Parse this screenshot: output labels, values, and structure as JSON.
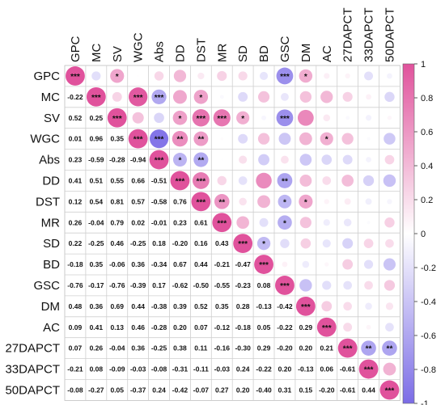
{
  "chart_data": {
    "type": "heatmap",
    "variables": [
      "GPC",
      "MC",
      "SV",
      "WGC",
      "Abs",
      "DD",
      "DST",
      "MR",
      "SD",
      "BD",
      "GSC",
      "DM",
      "AC",
      "27DAPCT",
      "33DAPCT",
      "50DAPCT"
    ],
    "lower_triangle_coefficients": [
      [],
      [
        "-0.22"
      ],
      [
        "0.52",
        "0.25"
      ],
      [
        "0.01",
        "0.96",
        "0.35"
      ],
      [
        "0.23",
        "-0.59",
        "-0.28",
        "-0.94"
      ],
      [
        "0.41",
        "0.51",
        "0.55",
        "0.66",
        "-0.51"
      ],
      [
        "0.12",
        "0.54",
        "0.81",
        "0.57",
        "-0.58",
        "0.76"
      ],
      [
        "0.26",
        "-0.04",
        "0.79",
        "0.02",
        "-0.01",
        "0.23",
        "0.61"
      ],
      [
        "0.22",
        "-0.25",
        "0.46",
        "-0.25",
        "0.18",
        "-0.20",
        "0.16",
        "0.43"
      ],
      [
        "-0.18",
        "0.35",
        "-0.06",
        "0.36",
        "-0.34",
        "0.67",
        "0.44",
        "-0.21",
        "-0.47"
      ],
      [
        "-0.76",
        "-0.17",
        "-0.76",
        "-0.39",
        "0.17",
        "-0.62",
        "-0.50",
        "-0.55",
        "-0.23",
        "0.08"
      ],
      [
        "0.48",
        "0.36",
        "0.69",
        "0.44",
        "-0.38",
        "0.39",
        "0.52",
        "0.35",
        "0.28",
        "-0.13",
        "-0.42"
      ],
      [
        "0.09",
        "0.41",
        "0.13",
        "0.46",
        "-0.28",
        "0.20",
        "0.07",
        "-0.12",
        "-0.18",
        "0.05",
        "-0.22",
        "0.29"
      ],
      [
        "0.07",
        "0.26",
        "-0.04",
        "0.36",
        "-0.25",
        "0.38",
        "0.11",
        "-0.16",
        "-0.30",
        "0.29",
        "-0.20",
        "0.20",
        "0.21"
      ],
      [
        "-0.21",
        "0.08",
        "-0.09",
        "-0.03",
        "-0.08",
        "-0.31",
        "-0.11",
        "-0.03",
        "0.24",
        "-0.22",
        "0.20",
        "-0.13",
        "0.06",
        "-0.61"
      ],
      [
        "-0.08",
        "-0.27",
        "0.05",
        "-0.37",
        "0.24",
        "-0.42",
        "-0.07",
        "0.27",
        "0.20",
        "-0.40",
        "0.31",
        "0.15",
        "-0.20",
        "-0.61",
        "0.44"
      ]
    ],
    "diagonal_label": "***",
    "upper_triangle_significance": [
      [
        "GPC",
        "SV",
        "*"
      ],
      [
        "GPC",
        "GSC",
        "***"
      ],
      [
        "GPC",
        "DM",
        "*"
      ],
      [
        "MC",
        "WGC",
        "***"
      ],
      [
        "MC",
        "Abs",
        "***"
      ],
      [
        "MC",
        "DST",
        "*"
      ],
      [
        "SV",
        "DD",
        "*"
      ],
      [
        "SV",
        "DST",
        "***"
      ],
      [
        "SV",
        "MR",
        "***"
      ],
      [
        "SV",
        "SD",
        "*"
      ],
      [
        "SV",
        "GSC",
        "***"
      ],
      [
        "WGC",
        "Abs",
        "***"
      ],
      [
        "WGC",
        "DD",
        "**"
      ],
      [
        "WGC",
        "DST",
        "**"
      ],
      [
        "WGC",
        "AC",
        "*"
      ],
      [
        "Abs",
        "DD",
        "*"
      ],
      [
        "Abs",
        "DST",
        "**"
      ],
      [
        "DD",
        "DST",
        "***"
      ],
      [
        "DD",
        "GSC",
        "**"
      ],
      [
        "DST",
        "MR",
        "**"
      ],
      [
        "DST",
        "GSC",
        "*"
      ],
      [
        "DST",
        "DM",
        "*"
      ],
      [
        "MR",
        "GSC",
        "*"
      ],
      [
        "SD",
        "BD",
        "*"
      ],
      [
        "27DAPCT",
        "33DAPCT",
        "**"
      ],
      [
        "27DAPCT",
        "50DAPCT",
        "**"
      ]
    ],
    "colorbar": {
      "ticks": [
        "1",
        "0.8",
        "0.6",
        "0.4",
        "0.2",
        "0",
        "-0.2",
        "-0.4",
        "-0.6",
        "-0.8",
        "-1"
      ],
      "positive_color": "#e0529c",
      "neutral_color": "#ffffff",
      "negative_color": "#7b6ce6"
    },
    "grid": true
  }
}
